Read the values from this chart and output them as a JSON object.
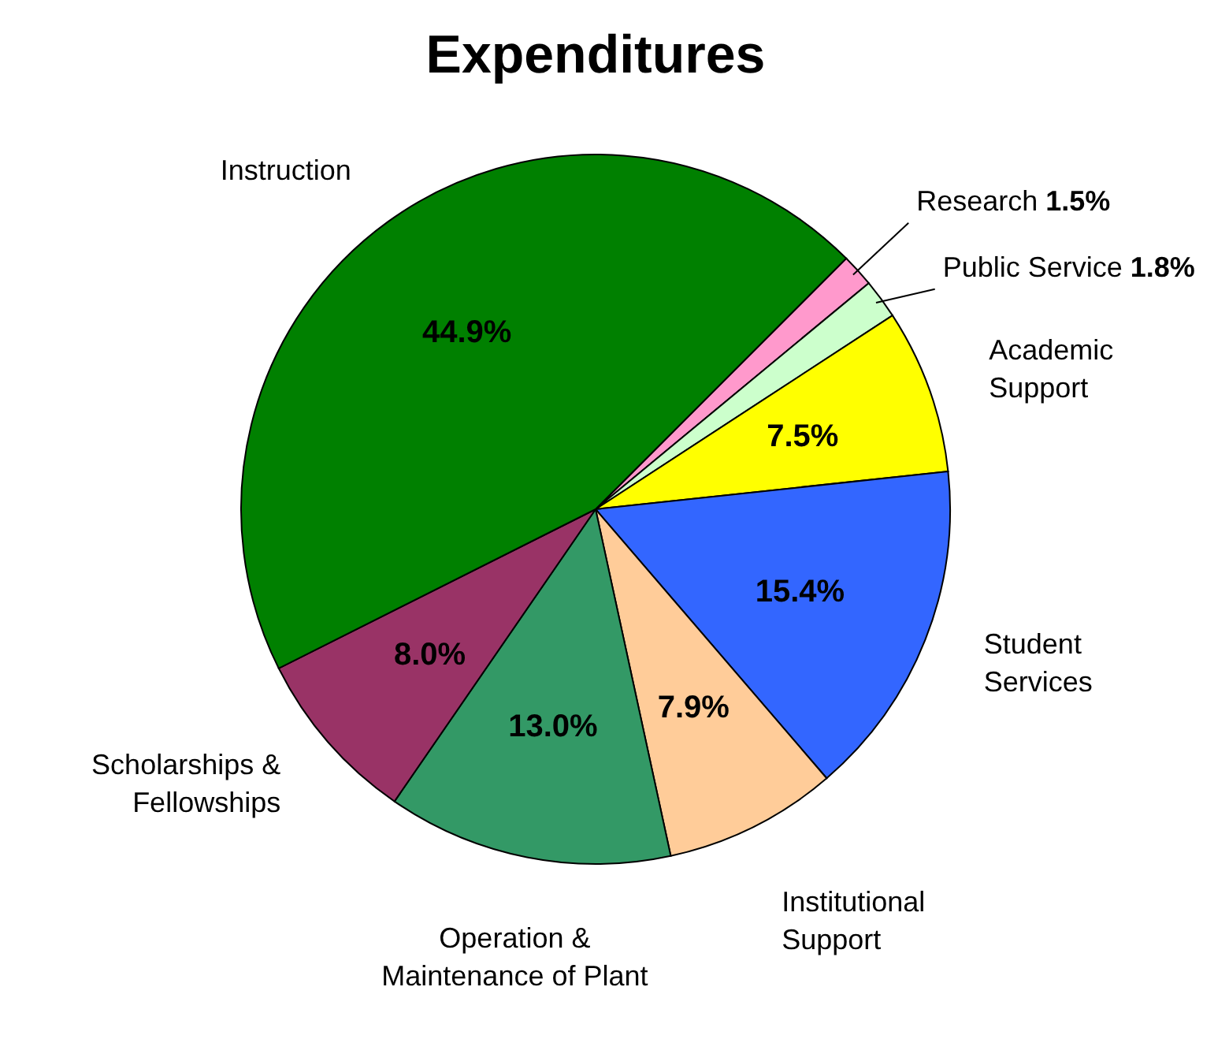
{
  "chart_data": {
    "type": "pie",
    "title": "Expenditures",
    "categories": [
      "Research",
      "Public Service",
      "Academic Support",
      "Student Services",
      "Institutional Support",
      "Operation & Maintenance of Plant",
      "Scholarships & Fellowships",
      "Instruction"
    ],
    "values": [
      1.5,
      1.8,
      7.5,
      15.4,
      7.9,
      13.0,
      8.0,
      44.9
    ],
    "value_labels": [
      "1.5%",
      "1.8%",
      "7.5%",
      "15.4%",
      "7.9%",
      "13.0%",
      "8.0%",
      "44.9%"
    ],
    "colors": [
      "#ff99cc",
      "#ccffcc",
      "#ffff00",
      "#3366ff",
      "#ffcc99",
      "#339966",
      "#993366",
      "#008000"
    ]
  }
}
